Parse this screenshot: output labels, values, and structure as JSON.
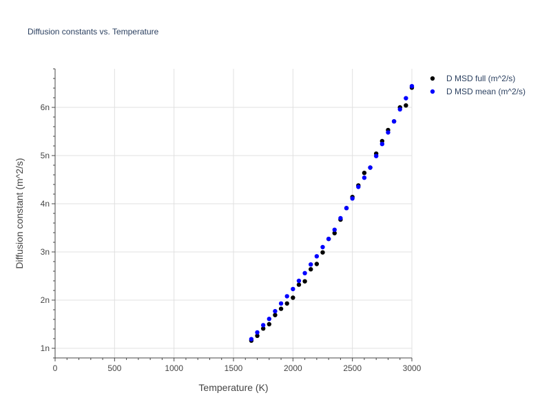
{
  "chart_data": {
    "type": "scatter",
    "title": "Diffusion constants vs. Temperature",
    "xlabel": "Temperature (K)",
    "ylabel": "Diffusion constant (m^2/s)",
    "xlim": [
      0,
      3000
    ],
    "ylim": [
      8e-10,
      6.8e-09
    ],
    "x_ticks": [
      0,
      500,
      1000,
      1500,
      2000,
      2500,
      3000
    ],
    "x_tick_labels": [
      "0",
      "500",
      "1000",
      "1500",
      "2000",
      "2500",
      "3000"
    ],
    "y_ticks": [
      1e-09,
      2e-09,
      3e-09,
      4e-09,
      5e-09,
      6e-09
    ],
    "y_tick_labels": [
      "1n",
      "2n",
      "3n",
      "4n",
      "5n",
      "6n"
    ],
    "grid": true,
    "legend_position": "top-right",
    "x": [
      1650,
      1700,
      1750,
      1800,
      1850,
      1900,
      1950,
      2000,
      2050,
      2100,
      2150,
      2200,
      2250,
      2300,
      2350,
      2400,
      2450,
      2500,
      2550,
      2600,
      2650,
      2700,
      2750,
      2800,
      2850,
      2900,
      2950,
      3000
    ],
    "series": [
      {
        "name": "D MSD full (m^2/s)",
        "color": "#000000",
        "values": [
          1.16e-09,
          1.26e-09,
          1.41e-09,
          1.5e-09,
          1.69e-09,
          1.82e-09,
          1.93e-09,
          2.05e-09,
          2.32e-09,
          2.39e-09,
          2.64e-09,
          2.75e-09,
          2.99e-09,
          3.27e-09,
          3.39e-09,
          3.67e-09,
          3.91e-09,
          4.14e-09,
          4.38e-09,
          4.64e-09,
          4.75e-09,
          5.04e-09,
          5.3e-09,
          5.53e-09,
          5.71e-09,
          6e-09,
          6.04e-09,
          6.41e-09
        ]
      },
      {
        "name": "D MSD mean (m^2/s)",
        "color": "#0000ff",
        "values": [
          1.19e-09,
          1.33e-09,
          1.48e-09,
          1.61e-09,
          1.77e-09,
          1.93e-09,
          2.08e-09,
          2.23e-09,
          2.4e-09,
          2.56e-09,
          2.74e-09,
          2.91e-09,
          3.1e-09,
          3.27e-09,
          3.46e-09,
          3.7e-09,
          3.91e-09,
          4.11e-09,
          4.35e-09,
          4.54e-09,
          4.75e-09,
          4.99e-09,
          5.24e-09,
          5.48e-09,
          5.71e-09,
          5.96e-09,
          6.19e-09,
          6.44e-09
        ]
      }
    ]
  }
}
